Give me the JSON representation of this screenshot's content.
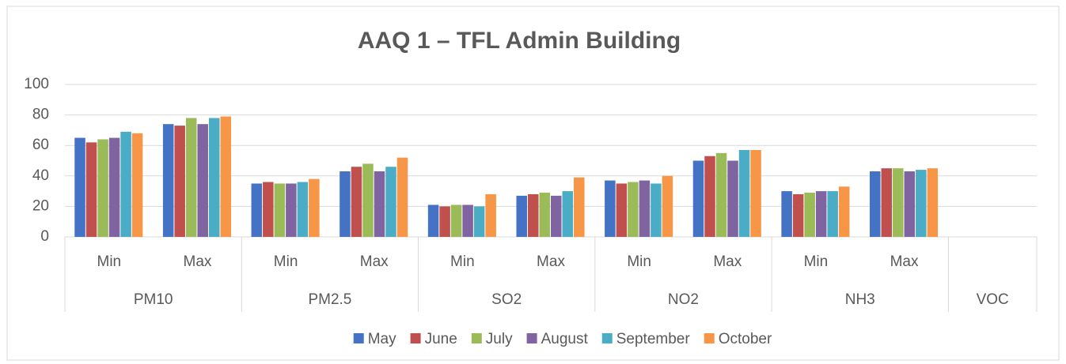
{
  "chart_data": {
    "type": "bar",
    "title": "AAQ 1 – TFL Admin Building",
    "groups": [
      {
        "name": "PM10",
        "categories": [
          "Min",
          "Max"
        ]
      },
      {
        "name": "PM2.5",
        "categories": [
          "Min",
          "Max"
        ]
      },
      {
        "name": "SO2",
        "categories": [
          "Min",
          "Max"
        ]
      },
      {
        "name": "NO2",
        "categories": [
          "Min",
          "Max"
        ]
      },
      {
        "name": "NH3",
        "categories": [
          "Min",
          "Max"
        ]
      },
      {
        "name": "VOC",
        "categories": [
          null
        ]
      }
    ],
    "series": [
      {
        "name": "May",
        "color": "#4472c4",
        "values": [
          65,
          74,
          35,
          43,
          21,
          27,
          37,
          50,
          30,
          43,
          null
        ]
      },
      {
        "name": "June",
        "color": "#c0504d",
        "values": [
          62,
          73,
          36,
          46,
          20,
          28,
          35,
          53,
          28,
          45,
          null
        ]
      },
      {
        "name": "July",
        "color": "#9bbb59",
        "values": [
          64,
          78,
          35,
          48,
          21,
          29,
          36,
          55,
          29,
          45,
          null
        ]
      },
      {
        "name": "August",
        "color": "#8064a2",
        "values": [
          65,
          74,
          35,
          43,
          21,
          27,
          37,
          50,
          30,
          43,
          null
        ]
      },
      {
        "name": "September",
        "color": "#4bacc6",
        "values": [
          69,
          78,
          36,
          46,
          20,
          30,
          35,
          57,
          30,
          44,
          null
        ]
      },
      {
        "name": "October",
        "color": "#f79646",
        "values": [
          68,
          79,
          38,
          52,
          28,
          39,
          40,
          57,
          33,
          45,
          null
        ]
      }
    ],
    "ylim": [
      0,
      100
    ],
    "yticks": [
      0,
      20,
      40,
      60,
      80,
      100
    ],
    "grid": true,
    "legend": "bottom"
  }
}
